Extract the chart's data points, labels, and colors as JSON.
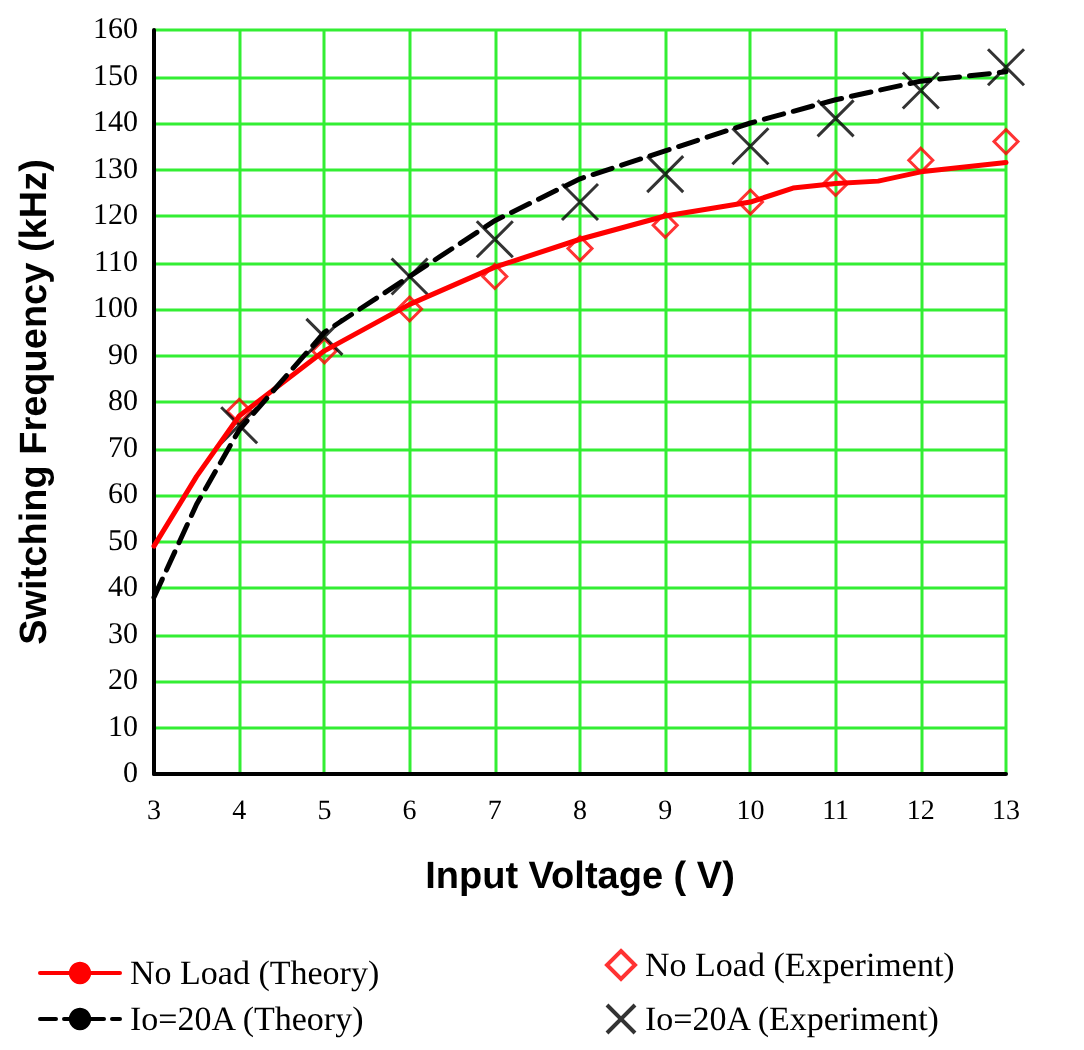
{
  "chart_data": {
    "type": "line",
    "xlabel": "Input Voltage ( V)",
    "ylabel": "Switching Frequency (kHz)",
    "xlim": [
      3,
      13
    ],
    "xticks": [
      3,
      4,
      5,
      6,
      7,
      8,
      9,
      10,
      11,
      12,
      13
    ],
    "ylim": [
      0,
      160
    ],
    "yticks": [
      0,
      10,
      20,
      30,
      40,
      50,
      60,
      70,
      80,
      90,
      100,
      110,
      120,
      130,
      140,
      150,
      160
    ],
    "grid": true,
    "legend": "bottom",
    "series": [
      {
        "name": "No Load (Theory)",
        "color": "#ff0000",
        "line_style": "solid",
        "marker": "none",
        "x": [
          3,
          3.5,
          4,
          5,
          6,
          7,
          8,
          9,
          10,
          10.5,
          11,
          11.5,
          12,
          13
        ],
        "values": [
          49,
          64,
          77,
          91,
          101,
          109,
          115,
          120,
          123,
          126,
          127,
          127.5,
          129.5,
          131.5
        ]
      },
      {
        "name": "Io=20A (Theory)",
        "color": "#000000",
        "line_style": "dashed",
        "marker": "none",
        "x": [
          3,
          3.5,
          4,
          5,
          6,
          7,
          8,
          9,
          10,
          11,
          12,
          13
        ],
        "values": [
          38,
          58,
          74,
          95,
          107,
          119,
          128,
          134,
          140,
          145,
          149,
          151
        ]
      },
      {
        "name": "No Load (Experiment)",
        "type": "scatter",
        "color": "#ff0000",
        "marker": "diamond",
        "x": [
          4,
          5,
          6,
          7,
          8,
          9,
          10,
          11,
          12,
          13
        ],
        "values": [
          78,
          91,
          100,
          107,
          113,
          118,
          123,
          127,
          132,
          136
        ]
      },
      {
        "name": "Io=20A (Experiment)",
        "type": "scatter",
        "color": "#000000",
        "marker": "cross",
        "x": [
          4,
          5,
          6,
          7,
          8,
          9,
          10,
          11,
          12,
          13
        ],
        "values": [
          75,
          94,
          107,
          115,
          123,
          129,
          135,
          141,
          147,
          152
        ]
      }
    ]
  }
}
